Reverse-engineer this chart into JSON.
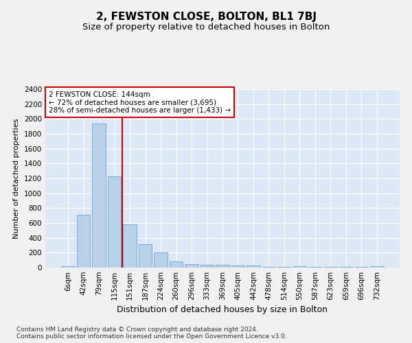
{
  "title": "2, FEWSTON CLOSE, BOLTON, BL1 7BJ",
  "subtitle": "Size of property relative to detached houses in Bolton",
  "xlabel": "Distribution of detached houses by size in Bolton",
  "ylabel": "Number of detached properties",
  "categories": [
    "6sqm",
    "42sqm",
    "79sqm",
    "115sqm",
    "151sqm",
    "187sqm",
    "224sqm",
    "260sqm",
    "296sqm",
    "333sqm",
    "369sqm",
    "405sqm",
    "442sqm",
    "478sqm",
    "514sqm",
    "550sqm",
    "587sqm",
    "623sqm",
    "659sqm",
    "696sqm",
    "732sqm"
  ],
  "values": [
    18,
    710,
    1940,
    1225,
    580,
    310,
    205,
    85,
    48,
    38,
    38,
    25,
    25,
    12,
    12,
    20,
    5,
    5,
    5,
    5,
    18
  ],
  "bar_color": "#b8d0e8",
  "bar_edgecolor": "#6aaad4",
  "plot_bg_color": "#dce8f5",
  "fig_bg_color": "#f0f0f0",
  "grid_color": "#ffffff",
  "vline_color": "#cc0000",
  "vline_x_index": 3,
  "annotation_text": "2 FEWSTON CLOSE: 144sqm\n← 72% of detached houses are smaller (3,695)\n28% of semi-detached houses are larger (1,433) →",
  "annotation_box_edgecolor": "#cc0000",
  "ylim": [
    0,
    2400
  ],
  "yticks": [
    0,
    200,
    400,
    600,
    800,
    1000,
    1200,
    1400,
    1600,
    1800,
    2000,
    2200,
    2400
  ],
  "footnote": "Contains HM Land Registry data © Crown copyright and database right 2024.\nContains public sector information licensed under the Open Government Licence v3.0.",
  "title_fontsize": 11,
  "subtitle_fontsize": 9.5,
  "xlabel_fontsize": 9,
  "ylabel_fontsize": 8,
  "tick_fontsize": 7.5,
  "annotation_fontsize": 7.5,
  "footnote_fontsize": 6.5
}
